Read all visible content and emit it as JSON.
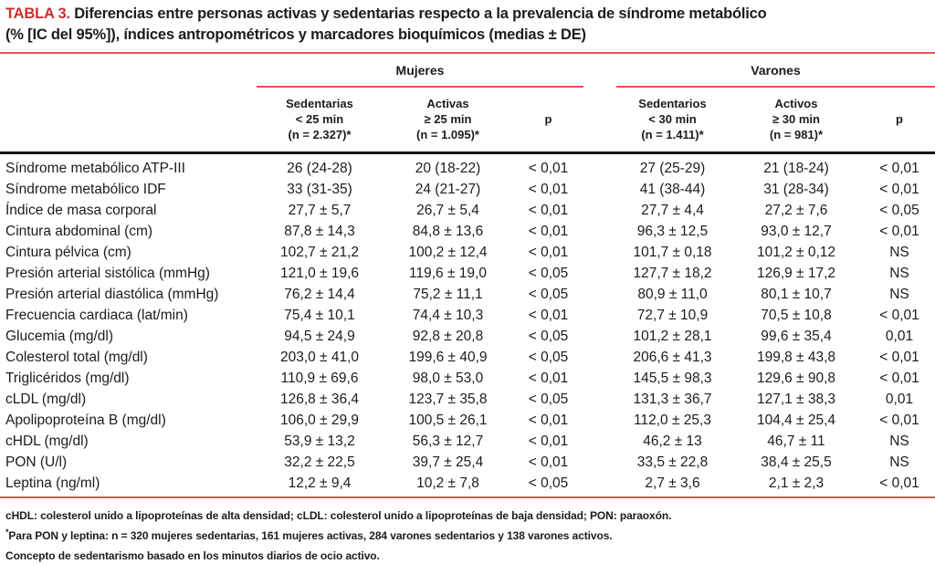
{
  "colors": {
    "accent_red": "#d02e2e",
    "rule_red": "#e25353",
    "rule_black": "#161616",
    "text": "#1c1c1c"
  },
  "title": {
    "label": "TABLA 3.",
    "line1": "Diferencias entre personas activas y sedentarias respecto a la prevalencia de síndrome metabólico",
    "line2": "(% [IC del 95%]), índices antropométricos y marcadores bioquímicos (medias ± DE)"
  },
  "header": {
    "groups": [
      {
        "label": "Mujeres"
      },
      {
        "label": "Varones"
      }
    ],
    "columns": [
      {
        "name": "Sedentarias",
        "threshold": "< 25 min",
        "n": "(n = 2.327)*"
      },
      {
        "name": "Activas",
        "threshold": "≥ 25 min",
        "n": "(n = 1.095)*"
      },
      {
        "name": "p"
      },
      {
        "name": "Sedentarios",
        "threshold": "< 30 min",
        "n": "(n = 1.411)*"
      },
      {
        "name": "Activos",
        "threshold": "≥ 30 min",
        "n": "(n = 981)*"
      },
      {
        "name": "p"
      }
    ]
  },
  "rows": [
    {
      "label": "Síndrome metabólico ATP-III",
      "values": [
        "26 (24-28)",
        "20 (18-22)",
        "< 0,01",
        "27 (25-29)",
        "21 (18-24)",
        "< 0,01"
      ]
    },
    {
      "label": "Síndrome metabólico IDF",
      "values": [
        "33 (31-35)",
        "24 (21-27)",
        "< 0,01",
        "41 (38-44)",
        "31 (28-34)",
        "< 0,01"
      ]
    },
    {
      "label": "Índice de masa corporal",
      "values": [
        "27,7 ± 5,7",
        "26,7 ± 5,4",
        "< 0,01",
        "27,7 ± 4,4",
        "27,2 ± 7,6",
        "< 0,05"
      ]
    },
    {
      "label": "Cintura abdominal (cm)",
      "values": [
        "87,8 ± 14,3",
        "84,8 ± 13,6",
        "< 0,01",
        "96,3 ± 12,5",
        "93,0 ± 12,7",
        "< 0,01"
      ]
    },
    {
      "label": "Cintura pélvica (cm)",
      "values": [
        "102,7 ± 21,2",
        "100,2 ± 12,4",
        "< 0,01",
        "101,7 ± 0,18",
        "101,2 ± 0,12",
        "NS"
      ]
    },
    {
      "label": "Presión arterial sistólica (mmHg)",
      "values": [
        "121,0 ± 19,6",
        "119,6 ± 19,0",
        "< 0,05",
        "127,7 ± 18,2",
        "126,9 ± 17,2",
        "NS"
      ]
    },
    {
      "label": "Presión arterial diastólica (mmHg)",
      "values": [
        "76,2 ± 14,4",
        "75,2 ± 11,1",
        "< 0,05",
        "80,9 ± 11,0",
        "80,1 ± 10,7",
        "NS"
      ]
    },
    {
      "label": "Frecuencia cardiaca (lat/min)",
      "values": [
        "75,4 ± 10,1",
        "74,4 ± 10,3",
        "< 0,01",
        "72,7 ± 10,9",
        "70,5 ± 10,8",
        "< 0,01"
      ]
    },
    {
      "label": "Glucemia (mg/dl)",
      "values": [
        "94,5 ± 24,9",
        "92,8 ± 20,8",
        "< 0,05",
        "101,2 ± 28,1",
        "99,6 ± 35,4",
        "0,01"
      ]
    },
    {
      "label": "Colesterol total (mg/dl)",
      "values": [
        "203,0 ± 41,0",
        "199,6 ± 40,9",
        "< 0,05",
        "206,6 ± 41,3",
        "199,8 ± 43,8",
        "< 0,01"
      ]
    },
    {
      "label": "Triglicéridos (mg/dl)",
      "values": [
        "110,9 ± 69,6",
        "98,0 ± 53,0",
        "< 0,01",
        "145,5 ± 98,3",
        "129,6 ± 90,8",
        "< 0,01"
      ]
    },
    {
      "label": "cLDL (mg/dl)",
      "values": [
        "126,8 ± 36,4",
        "123,7 ± 35,8",
        "< 0,05",
        "131,3 ± 36,7",
        "127,1 ± 38,3",
        "0,01"
      ]
    },
    {
      "label": "Apolipoproteína B (mg/dl)",
      "values": [
        "106,0 ± 29,9",
        "100,5 ± 26,1",
        "< 0,01",
        "112,0 ± 25,3",
        "104,4 ± 25,4",
        "< 0,01"
      ]
    },
    {
      "label": "cHDL (mg/dl)",
      "values": [
        "53,9 ± 13,2",
        "56,3 ± 12,7",
        "< 0,01",
        "46,2 ± 13",
        "46,7 ± 11",
        "NS"
      ]
    },
    {
      "label": "PON (U/l)",
      "values": [
        "32,2 ± 22,5",
        "39,7 ± 25,4",
        "< 0,01",
        "33,5 ± 22,8",
        "38,4 ± 25,5",
        "NS"
      ]
    },
    {
      "label": "Leptina (ng/ml)",
      "values": [
        "12,2 ± 9,4",
        "10,2 ± 7,8",
        "< 0,05",
        "2,7 ± 3,6",
        "2,1 ± 2,3",
        "< 0,01"
      ]
    }
  ],
  "footnotes": [
    {
      "marker": "",
      "text": "cHDL: colesterol unido a lipoproteínas de alta densidad; cLDL: colesterol unido a lipoproteínas de baja densidad; PON: paraoxón."
    },
    {
      "marker": "*",
      "text": "Para PON y leptina: n = 320 mujeres sedentarias, 161 mujeres activas, 284 varones sedentarios y 138 varones activos."
    },
    {
      "marker": "",
      "text": "Concepto de sedentarismo basado en los minutos diarios de ocio activo."
    }
  ]
}
